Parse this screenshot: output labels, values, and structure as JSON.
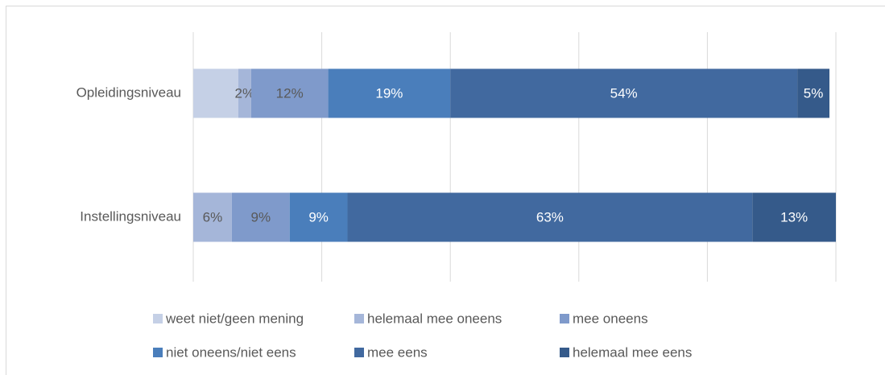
{
  "chart_data": {
    "type": "stacked-bar-horizontal",
    "categories": [
      "Opleidingsniveau",
      "Instellingsniveau"
    ],
    "series": [
      {
        "name": "weet niet/geen mening",
        "color": "#c5d0e6",
        "values": [
          7,
          0
        ],
        "value_labels": [
          null,
          null
        ]
      },
      {
        "name": "helemaal mee oneens",
        "color": "#a5b6d9",
        "values": [
          2,
          6
        ],
        "value_labels": [
          "2%",
          "6%"
        ]
      },
      {
        "name": "mee oneens",
        "color": "#7f9acb",
        "values": [
          12,
          9
        ],
        "value_labels": [
          "12%",
          "9%"
        ]
      },
      {
        "name": "niet oneens/niet eens",
        "color": "#4a7ebb",
        "values": [
          19,
          9
        ],
        "value_labels": [
          "19%",
          "9%"
        ]
      },
      {
        "name": "mee eens",
        "color": "#41699f",
        "values": [
          54,
          63
        ],
        "value_labels": [
          "54%",
          "63%"
        ]
      },
      {
        "name": "helemaal mee eens",
        "color": "#355a8a",
        "values": [
          5,
          13
        ],
        "value_labels": [
          "5%",
          "13%"
        ]
      }
    ],
    "xlim": [
      0,
      100
    ],
    "xticks": [
      0,
      20,
      40,
      60,
      80,
      100
    ],
    "grid": true,
    "legend": "bottom"
  }
}
